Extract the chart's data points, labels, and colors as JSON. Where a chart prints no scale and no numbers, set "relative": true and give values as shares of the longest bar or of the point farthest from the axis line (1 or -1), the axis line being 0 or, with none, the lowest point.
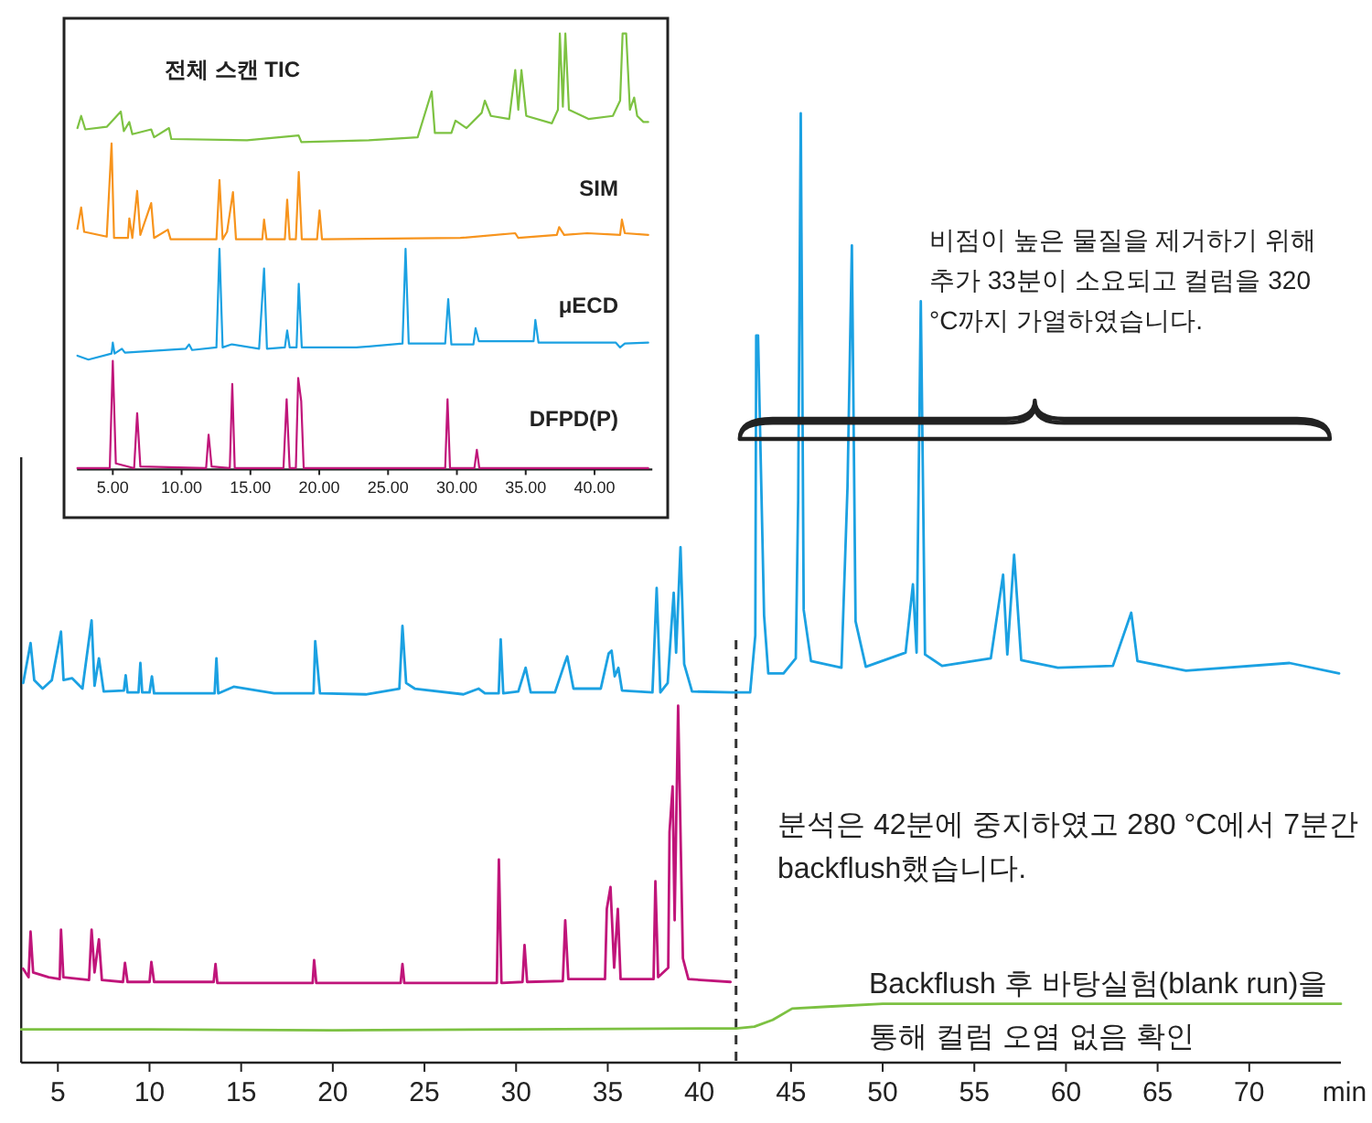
{
  "chart_data": [
    {
      "type": "line",
      "relative": true,
      "xlabel": "min",
      "xlim": [
        3,
        75
      ],
      "xticks": [
        5,
        10,
        15,
        20,
        25,
        30,
        35,
        40,
        45,
        50,
        55,
        60,
        65,
        70
      ],
      "series": [
        {
          "color": "#1ba1e2",
          "x": [
            3.11,
            3.51,
            3.71,
            4.17,
            4.67,
            5.17,
            5.31,
            5.77,
            6.34,
            6.84,
            7.0,
            7.24,
            7.5,
            8.6,
            8.7,
            8.8,
            9.4,
            9.5,
            9.6,
            10.0,
            10.13,
            10.25,
            11.83,
            13.55,
            13.65,
            13.75,
            14.59,
            16.8,
            18.95,
            19.04,
            19.3,
            21.8,
            23.63,
            23.8,
            24.0,
            24.47,
            27.13,
            27.96,
            28.3,
            29.05,
            29.16,
            29.3,
            30.12,
            30.52,
            30.8,
            32.12,
            32.62,
            32.79,
            33.13,
            34.62,
            35.05,
            35.21,
            35.38,
            35.58,
            35.78,
            37.44,
            37.67,
            37.87,
            38.27,
            38.47,
            38.6,
            38.73,
            38.97,
            39.17,
            39.6,
            41.77,
            42.77,
            43.05,
            43.1,
            43.2,
            43.53,
            43.76,
            44.59,
            45.26,
            45.39,
            45.53,
            45.69,
            46.09,
            47.75,
            48.08,
            48.32,
            48.52,
            49.08,
            51.25,
            51.65,
            51.85,
            52.08,
            52.31,
            53.24,
            55.9,
            56.57,
            56.8,
            57.17,
            57.56,
            59.56,
            62.56,
            63.56,
            63.9,
            66.55,
            72.2,
            74.9
          ],
          "values": [
            0.4,
            0.442,
            0.403,
            0.394,
            0.403,
            0.454,
            0.403,
            0.405,
            0.394,
            0.466,
            0.397,
            0.426,
            0.391,
            0.392,
            0.408,
            0.39,
            0.39,
            0.421,
            0.39,
            0.39,
            0.407,
            0.389,
            0.389,
            0.389,
            0.426,
            0.389,
            0.396,
            0.389,
            0.389,
            0.444,
            0.389,
            0.388,
            0.394,
            0.46,
            0.4,
            0.394,
            0.388,
            0.394,
            0.389,
            0.389,
            0.446,
            0.389,
            0.391,
            0.416,
            0.39,
            0.39,
            0.419,
            0.428,
            0.394,
            0.394,
            0.431,
            0.434,
            0.407,
            0.416,
            0.392,
            0.39,
            0.5,
            0.39,
            0.4,
            0.459,
            0.495,
            0.432,
            0.543,
            0.42,
            0.391,
            0.39,
            0.39,
            0.45,
            0.766,
            0.766,
            0.471,
            0.41,
            0.41,
            0.426,
            0.593,
            1.0,
            0.477,
            0.423,
            0.416,
            0.606,
            0.861,
            0.465,
            0.417,
            0.432,
            0.504,
            0.432,
            0.802,
            0.43,
            0.418,
            0.426,
            0.514,
            0.43,
            0.535,
            0.424,
            0.416,
            0.418,
            0.474,
            0.423,
            0.413,
            0.421,
            0.41
          ]
        },
        {
          "color": "#c0157a",
          "x": [
            3.1,
            3.4,
            3.51,
            3.65,
            4.5,
            5.1,
            5.17,
            5.3,
            6.7,
            6.84,
            7.0,
            7.24,
            7.4,
            8.55,
            8.66,
            8.8,
            10.0,
            10.1,
            10.25,
            13.5,
            13.6,
            13.7,
            18.9,
            18.98,
            19.1,
            23.7,
            23.8,
            23.9,
            28.95,
            29.06,
            29.2,
            30.35,
            30.46,
            30.6,
            32.55,
            32.68,
            32.85,
            34.85,
            34.95,
            35.15,
            35.35,
            35.55,
            35.7,
            37.5,
            37.6,
            37.75,
            38.3,
            38.37,
            38.54,
            38.65,
            38.84,
            39.1,
            39.4,
            41.7
          ],
          "values": [
            0.099,
            0.09,
            0.138,
            0.095,
            0.09,
            0.088,
            0.14,
            0.09,
            0.087,
            0.14,
            0.095,
            0.13,
            0.087,
            0.085,
            0.105,
            0.085,
            0.085,
            0.106,
            0.085,
            0.085,
            0.104,
            0.084,
            0.084,
            0.108,
            0.084,
            0.084,
            0.104,
            0.084,
            0.084,
            0.214,
            0.084,
            0.085,
            0.124,
            0.085,
            0.086,
            0.15,
            0.088,
            0.088,
            0.162,
            0.185,
            0.1,
            0.162,
            0.088,
            0.088,
            0.191,
            0.09,
            0.1,
            0.243,
            0.291,
            0.15,
            0.376,
            0.11,
            0.088,
            0.085
          ]
        },
        {
          "color": "#7cc142",
          "x": [
            3,
            10,
            20,
            30,
            40,
            42,
            43,
            44,
            45.06,
            47,
            50,
            55,
            60,
            65,
            70,
            75
          ],
          "values": [
            0.035,
            0.035,
            0.034,
            0.035,
            0.036,
            0.036,
            0.038,
            0.045,
            0.057,
            0.059,
            0.062,
            0.062,
            0.062,
            0.062,
            0.062,
            0.062
          ]
        }
      ],
      "ref_lines": [
        {
          "axis": "x",
          "value": 42,
          "color": "#333333",
          "line_style": "dashed"
        }
      ],
      "annotations": [
        "비점이 높은 물질을 제거하기 위해 추가 33분이 소요되고 컬럼을 320 °C까지 가열하였습니다.",
        "분석은 42분에 중지하였고 280 °C에서 7분간 backflush했습니다.",
        "Backflush 후 바탕실험(blank run)을 통해 컬럼 오염 없음 확인"
      ]
    },
    {
      "type": "line",
      "relative": true,
      "xlim": [
        2.4,
        44.2
      ],
      "xticks": [
        {
          "value": 5,
          "label": "5.00"
        },
        {
          "value": 10,
          "label": "10.00"
        },
        {
          "value": 15,
          "label": "15.00"
        },
        {
          "value": 20,
          "label": "20.00"
        },
        {
          "value": 25,
          "label": "25.00"
        },
        {
          "value": 30,
          "label": "30.00"
        },
        {
          "value": 35,
          "label": "35.00"
        },
        {
          "value": 40,
          "label": "40.00"
        }
      ],
      "series": [
        {
          "name": "전체 스캔 TIC",
          "color": "#7dc242",
          "x": [
            2.43,
            2.7,
            3.0,
            4.56,
            5.58,
            5.8,
            6.2,
            6.42,
            7.79,
            8.0,
            9.08,
            9.25,
            14.75,
            18.5,
            18.7,
            23.6,
            27.15,
            28.17,
            28.4,
            29.6,
            29.9,
            30.7,
            31.8,
            32.03,
            32.47,
            33.8,
            34.24,
            34.46,
            34.69,
            35.04,
            36.9,
            37.34,
            37.48,
            37.7,
            37.88,
            38.14,
            39.56,
            41.33,
            41.86,
            42.04,
            42.3,
            42.57,
            42.88,
            43.1,
            43.55,
            43.9
          ],
          "values": [
            0.783,
            0.811,
            0.78,
            0.786,
            0.821,
            0.776,
            0.797,
            0.769,
            0.78,
            0.762,
            0.783,
            0.758,
            0.755,
            0.766,
            0.751,
            0.755,
            0.762,
            0.867,
            0.772,
            0.772,
            0.8,
            0.783,
            0.818,
            0.846,
            0.811,
            0.804,
            0.916,
            0.825,
            0.916,
            0.811,
            0.794,
            0.825,
            1.0,
            0.832,
            1.0,
            0.825,
            0.804,
            0.811,
            0.846,
            1.0,
            1.0,
            0.825,
            0.853,
            0.811,
            0.797,
            0.797
          ]
        },
        {
          "name": "SIM",
          "color": "#f7941d",
          "x": [
            2.43,
            2.7,
            2.92,
            4.56,
            4.91,
            5.09,
            6.1,
            6.2,
            6.42,
            6.77,
            7.0,
            7.79,
            8.0,
            9.0,
            9.2,
            12.53,
            12.75,
            12.98,
            13.3,
            13.73,
            13.95,
            15.86,
            15.99,
            16.17,
            17.5,
            17.67,
            17.85,
            18.3,
            18.51,
            18.73,
            19.84,
            20.02,
            20.2,
            30.25,
            34.24,
            34.46,
            37.26,
            37.43,
            37.79,
            39.47,
            41.86,
            41.99,
            42.2,
            43.9
          ],
          "values": [
            0.552,
            0.601,
            0.545,
            0.534,
            0.748,
            0.531,
            0.531,
            0.576,
            0.531,
            0.639,
            0.538,
            0.611,
            0.531,
            0.55,
            0.528,
            0.528,
            0.664,
            0.528,
            0.545,
            0.636,
            0.528,
            0.528,
            0.573,
            0.528,
            0.528,
            0.619,
            0.528,
            0.528,
            0.682,
            0.528,
            0.528,
            0.594,
            0.528,
            0.531,
            0.542,
            0.531,
            0.538,
            0.556,
            0.538,
            0.542,
            0.538,
            0.573,
            0.542,
            0.538
          ]
        },
        {
          "name": "μECD",
          "color": "#1ba1e2",
          "x": [
            2.43,
            3.23,
            4.91,
            5.0,
            5.13,
            5.66,
            5.88,
            10.3,
            10.54,
            10.76,
            12.53,
            12.75,
            12.98,
            13.64,
            15.63,
            15.99,
            16.2,
            17.5,
            17.67,
            17.85,
            18.35,
            18.51,
            18.73,
            22.7,
            23.6,
            26.05,
            26.27,
            26.5,
            29.15,
            29.37,
            29.6,
            31.2,
            31.36,
            31.6,
            35.57,
            35.7,
            35.93,
            41.55,
            41.86,
            42.2,
            43.9
          ],
          "values": [
            0.261,
            0.252,
            0.266,
            0.291,
            0.266,
            0.277,
            0.268,
            0.277,
            0.287,
            0.274,
            0.28,
            0.506,
            0.28,
            0.287,
            0.277,
            0.461,
            0.277,
            0.28,
            0.319,
            0.28,
            0.28,
            0.426,
            0.28,
            0.28,
            0.282,
            0.289,
            0.506,
            0.289,
            0.289,
            0.391,
            0.287,
            0.287,
            0.324,
            0.294,
            0.294,
            0.343,
            0.291,
            0.291,
            0.28,
            0.289,
            0.291
          ]
        },
        {
          "name": "DFPD(P)",
          "color": "#c0157a",
          "x": [
            2.43,
            4.78,
            5.0,
            5.22,
            6.55,
            6.77,
            7.0,
            11.78,
            11.96,
            12.18,
            13.5,
            13.68,
            13.86,
            17.4,
            17.63,
            17.85,
            18.3,
            18.47,
            18.69,
            18.87,
            29.15,
            29.32,
            29.5,
            31.27,
            31.45,
            31.63,
            43.9
          ],
          "values": [
            0.003,
            0.003,
            0.249,
            0.014,
            0.003,
            0.129,
            0.007,
            0.003,
            0.08,
            0.007,
            0.003,
            0.196,
            0.003,
            0.003,
            0.161,
            0.003,
            0.003,
            0.21,
            0.157,
            0.003,
            0.003,
            0.161,
            0.003,
            0.003,
            0.045,
            0.003,
            0.003
          ]
        }
      ]
    }
  ]
}
